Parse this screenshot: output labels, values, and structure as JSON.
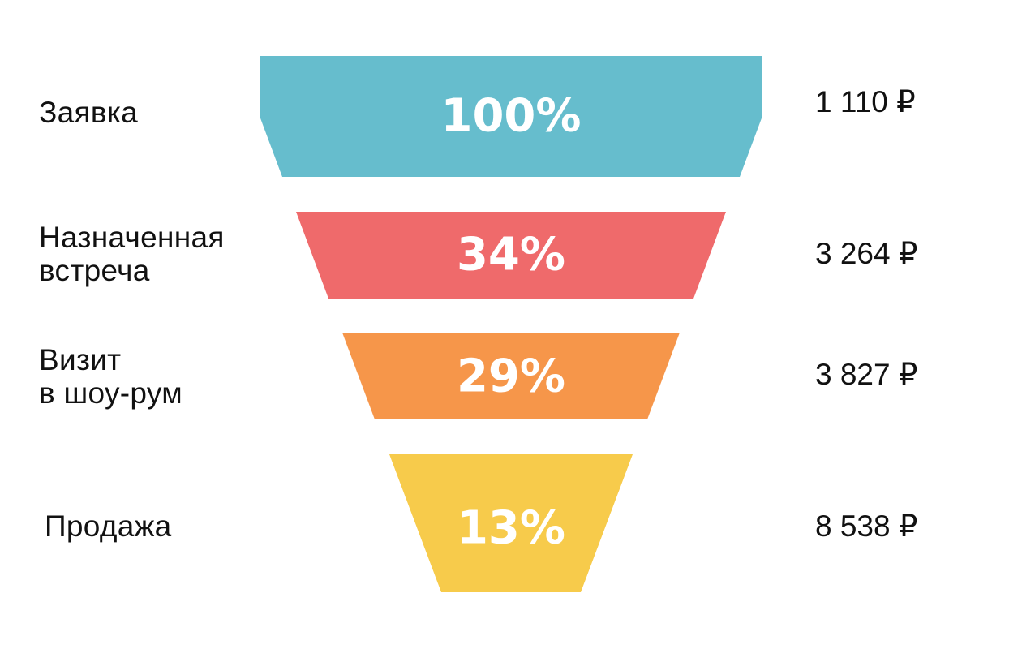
{
  "chart_data": {
    "type": "funnel",
    "stages": [
      {
        "label": "Заявка",
        "percent_text": "100%",
        "percent": 100,
        "cost": "1 110 ₽",
        "color": "#66BDCD"
      },
      {
        "label": "Назначенная\nвстреча",
        "percent_text": "34%",
        "percent": 34,
        "cost": "3 264 ₽",
        "color": "#EF6A6B"
      },
      {
        "label": "Визит\nв шоу-рум",
        "percent_text": "29%",
        "percent": 29,
        "cost": "3 827 ₽",
        "color": "#F6964A"
      },
      {
        "label": "Продажа",
        "percent_text": "13%",
        "percent": 13,
        "cost": "8 538 ₽",
        "color": "#F7CB4B"
      }
    ]
  }
}
